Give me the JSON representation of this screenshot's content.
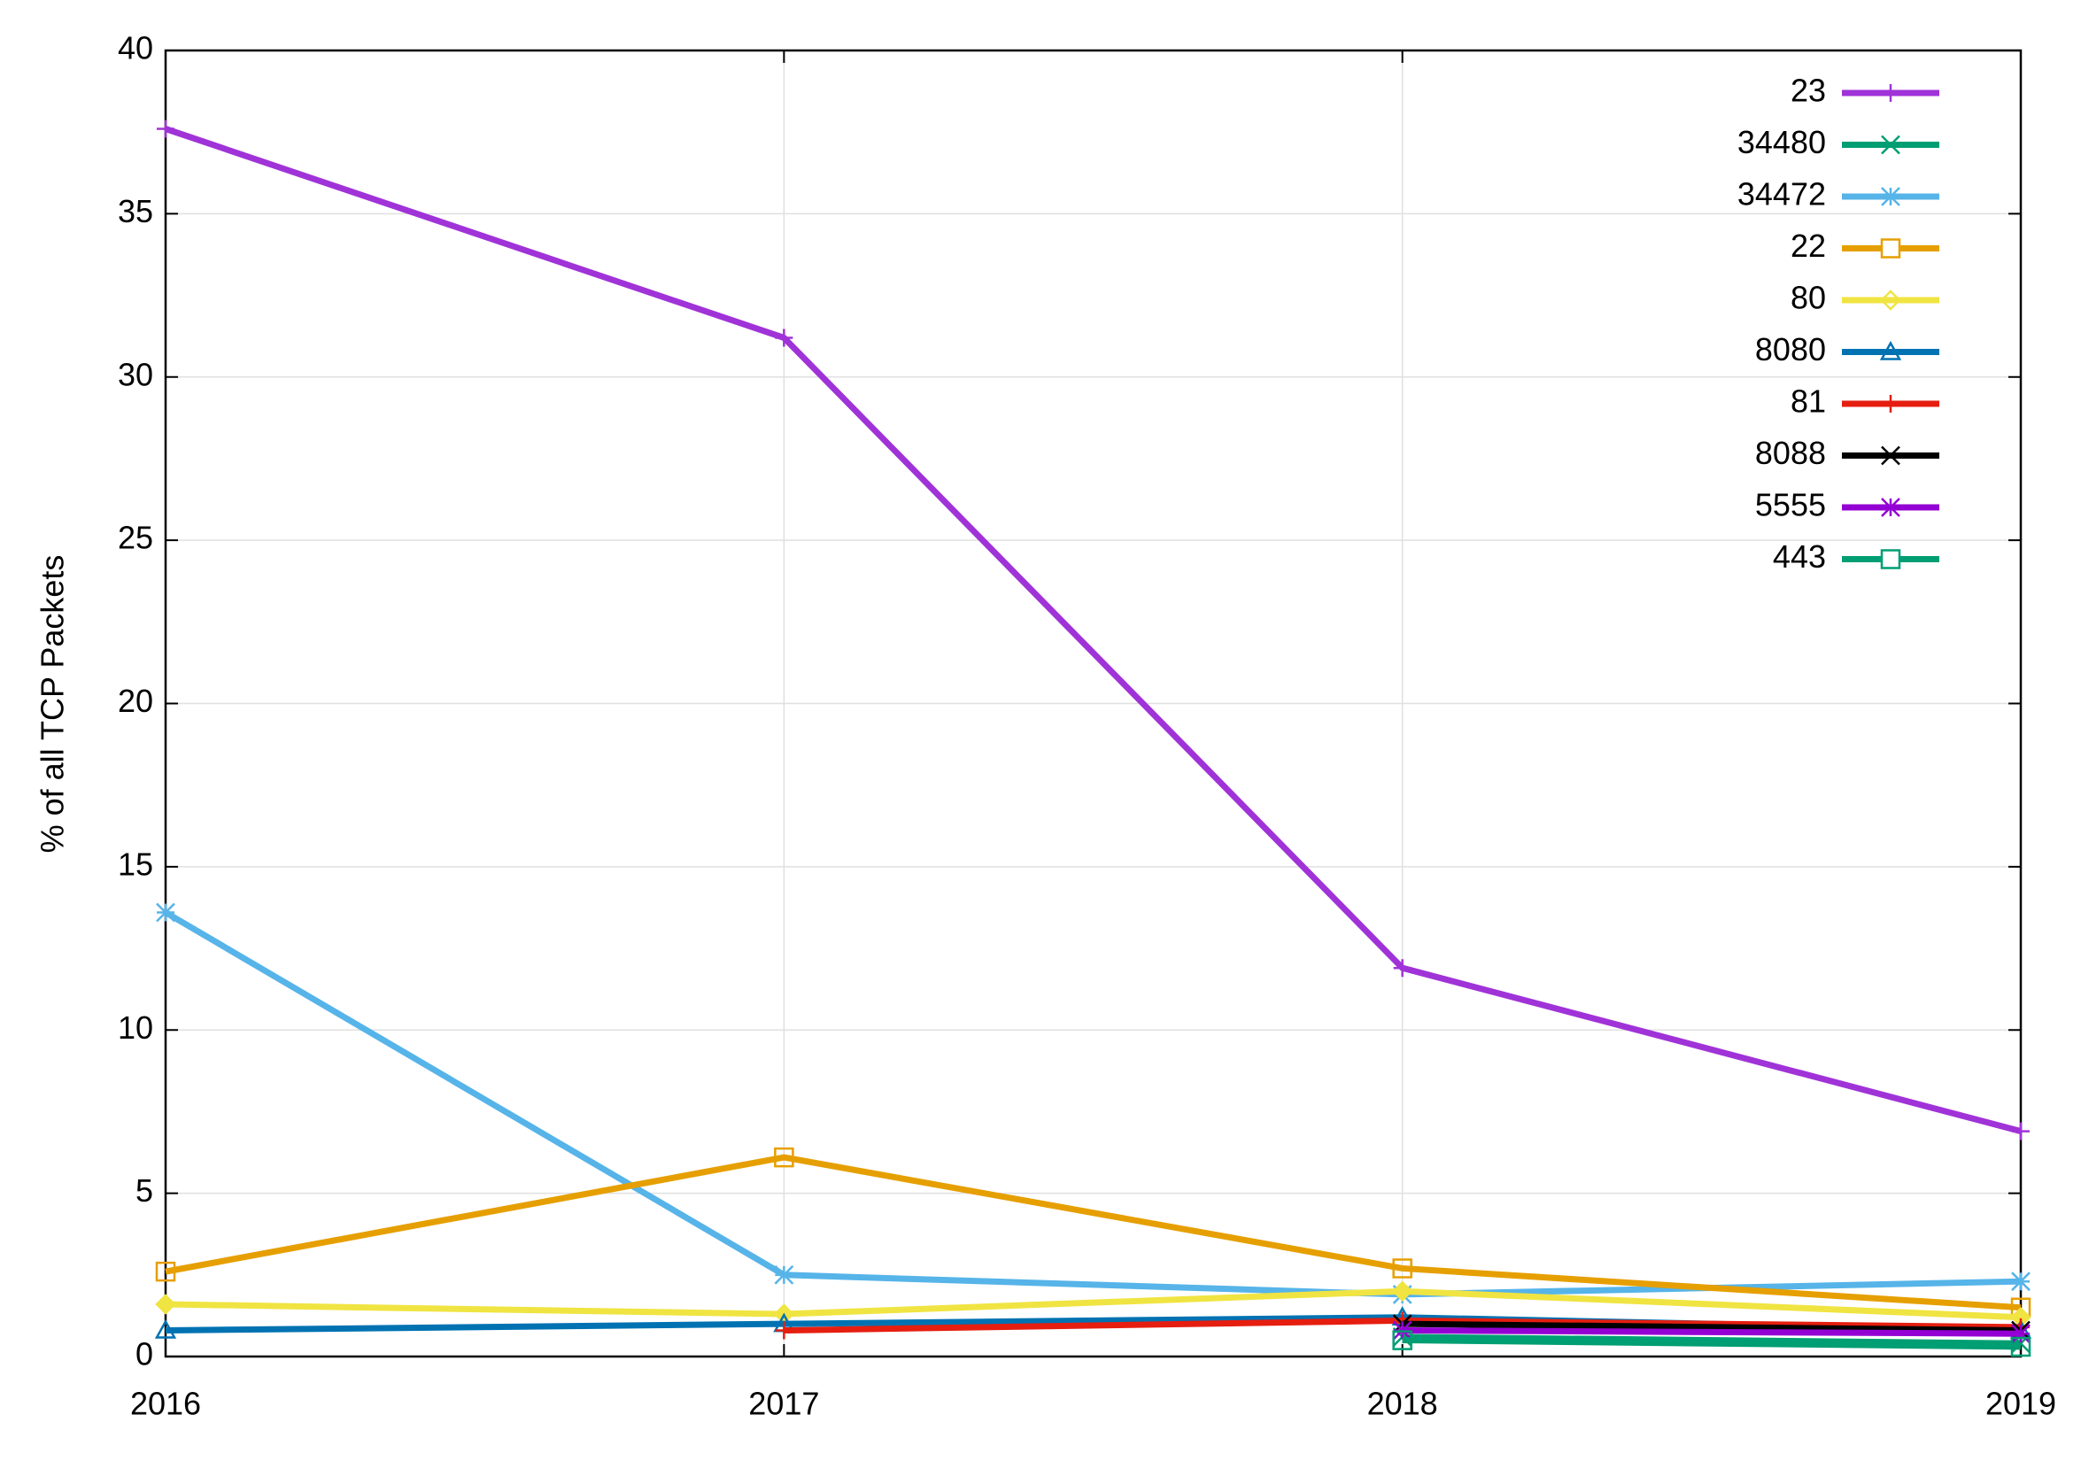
{
  "chart_data": {
    "type": "line",
    "y_label": "% of all TCP Packets",
    "x": [
      2016,
      2017,
      2018,
      2019
    ],
    "xlim": [
      2016,
      2019
    ],
    "xticks": [
      2016,
      2017,
      2018,
      2019
    ],
    "ylim": [
      0,
      40
    ],
    "yticks": [
      0,
      5,
      10,
      15,
      20,
      25,
      30,
      35,
      40
    ],
    "grid": true,
    "legend": "top-right",
    "series": [
      {
        "name": "23",
        "color": "#a033d8",
        "marker": "plus",
        "values": [
          37.6,
          31.2,
          11.9,
          6.9
        ]
      },
      {
        "name": "34480",
        "color": "#009e73",
        "marker": "x",
        "values": [
          null,
          null,
          0.6,
          0.4
        ]
      },
      {
        "name": "34472",
        "color": "#56b4e9",
        "marker": "star",
        "values": [
          13.6,
          2.5,
          1.9,
          2.3
        ]
      },
      {
        "name": "22",
        "color": "#e69f00",
        "marker": "square",
        "values": [
          2.6,
          6.1,
          2.7,
          1.5
        ]
      },
      {
        "name": "80",
        "color": "#f0e442",
        "marker": "diamond",
        "values": [
          1.6,
          1.3,
          2.0,
          1.2
        ]
      },
      {
        "name": "8080",
        "color": "#0072b2",
        "marker": "triangle",
        "values": [
          0.8,
          1.0,
          1.2,
          0.8
        ]
      },
      {
        "name": "81",
        "color": "#e51e10",
        "marker": "plus",
        "values": [
          null,
          0.8,
          1.1,
          0.9
        ]
      },
      {
        "name": "8088",
        "color": "#000000",
        "marker": "x",
        "values": [
          null,
          null,
          1.0,
          0.8
        ]
      },
      {
        "name": "5555",
        "color": "#9400d3",
        "marker": "star",
        "values": [
          null,
          null,
          0.8,
          0.7
        ]
      },
      {
        "name": "443",
        "color": "#009e73",
        "marker": "square",
        "values": [
          null,
          null,
          0.5,
          0.3
        ]
      }
    ]
  }
}
